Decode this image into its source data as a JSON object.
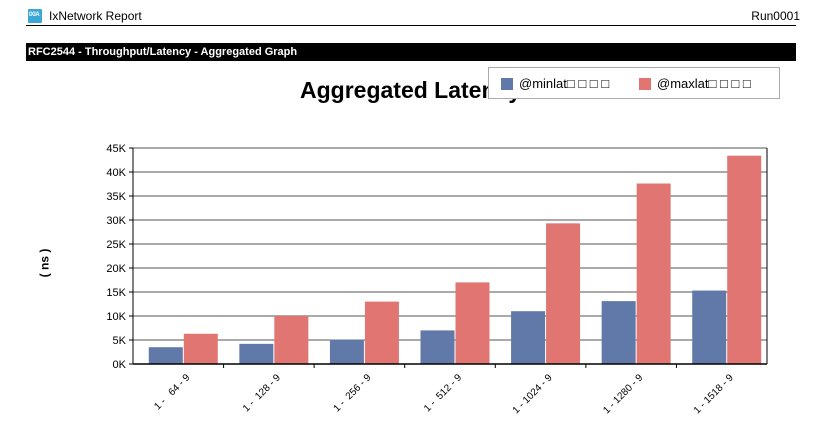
{
  "header": {
    "logo_text": "IXIA",
    "app_title": "IxNetwork Report",
    "run_id": "Run0001"
  },
  "section": {
    "title": "RFC2544 - Throughput/Latency - Aggregated Graph"
  },
  "chart_data": {
    "type": "bar",
    "title": "Aggregated Latency",
    "xlabel": "",
    "ylabel": "( ns )",
    "categories": [
      "1 -   64 - 9",
      "1 -  128 - 9",
      "1 -  256 - 9",
      "1 -  512 - 9",
      "1 - 1024 - 9",
      "1 - 1280 - 9",
      "1 - 1518 - 9"
    ],
    "series": [
      {
        "name": "@minlat□ □ □ □",
        "color": "#6079a8",
        "values": [
          3500,
          4200,
          5100,
          7000,
          11000,
          13100,
          15300
        ]
      },
      {
        "name": "@maxlat□ □ □ □",
        "color": "#e07572",
        "values": [
          6300,
          10000,
          13000,
          17000,
          29300,
          37600,
          43400
        ]
      }
    ],
    "ylim": [
      0,
      45000
    ],
    "yticks": [
      0,
      5000,
      10000,
      15000,
      20000,
      25000,
      30000,
      35000,
      40000,
      45000
    ],
    "ytick_labels": [
      "0K",
      "5K",
      "10K",
      "15K",
      "20K",
      "25K",
      "30K",
      "35K",
      "40K",
      "45K"
    ],
    "grid": true,
    "legend_position": "top-right"
  }
}
